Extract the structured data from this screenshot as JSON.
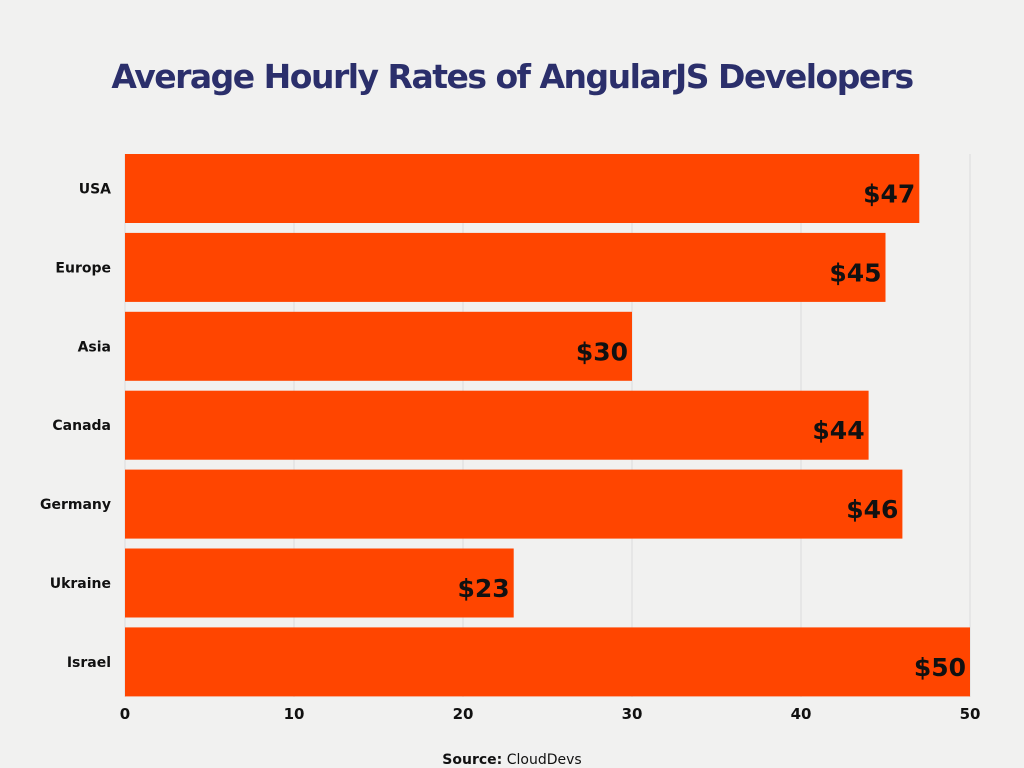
{
  "chart_data": {
    "type": "bar",
    "orientation": "horizontal",
    "title": "Average Hourly Rates of AngularJS Developers",
    "categories": [
      "USA",
      "Europe",
      "Asia",
      "Canada",
      "Germany",
      "Ukraine",
      "Israel"
    ],
    "values": [
      47,
      45,
      30,
      44,
      46,
      23,
      50
    ],
    "value_labels": [
      "$47",
      "$45",
      "$30",
      "$44",
      "$46",
      "$23",
      "$50"
    ],
    "xlim": [
      0,
      50
    ],
    "xticks": [
      0,
      10,
      20,
      30,
      40,
      50
    ],
    "grid": true,
    "xlabel": "",
    "ylabel": ""
  },
  "source": {
    "label": "Source:",
    "value": "CloudDevs"
  },
  "colors": {
    "bar": "#ff4500",
    "title": "#2b2f6b",
    "grid": "#dcdcdc",
    "background": "#f1f1f0"
  }
}
